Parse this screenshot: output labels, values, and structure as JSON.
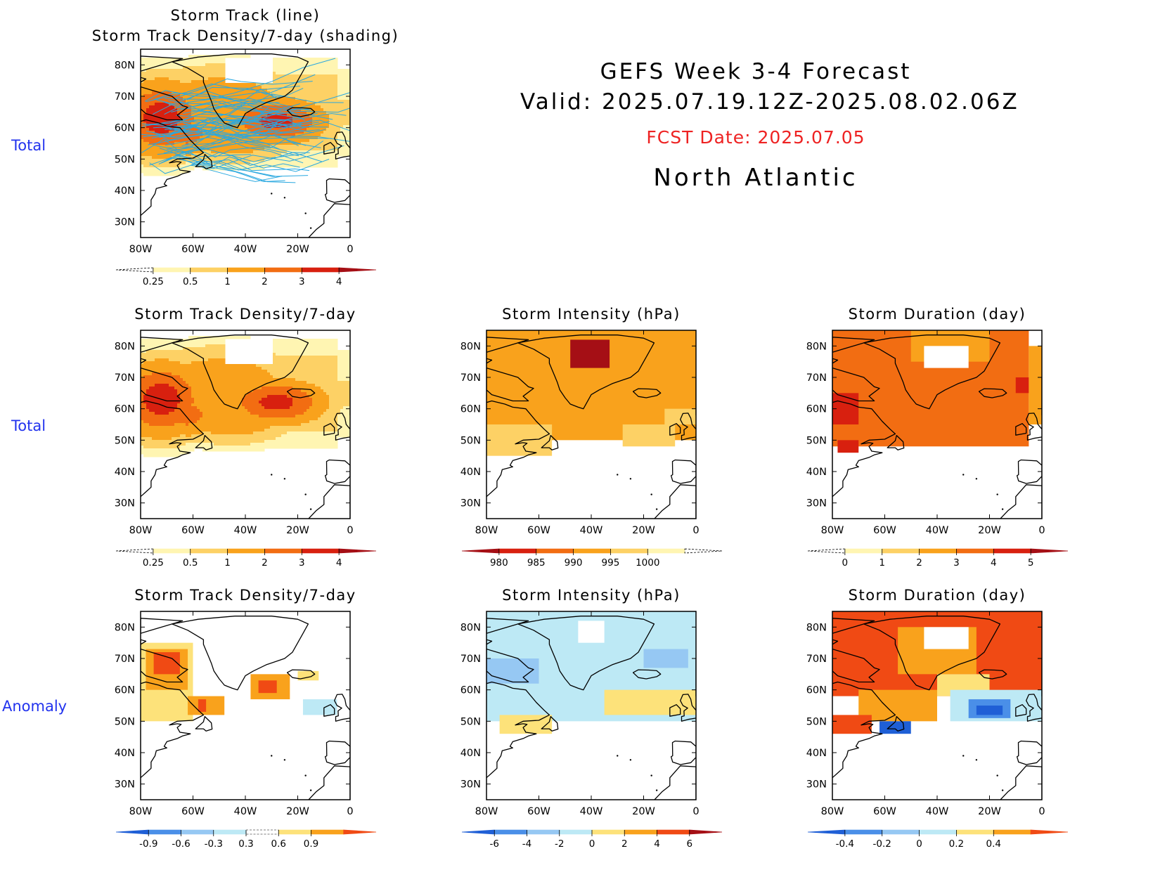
{
  "header": {
    "title": "GEFS Week 3-4 Forecast",
    "valid": "Valid: 2025.07.19.12Z-2025.08.02.06Z",
    "fcst_date": "FCST Date: 2025.07.05",
    "region": "North Atlantic"
  },
  "row_labels": [
    "Total",
    "Total",
    "Anomaly"
  ],
  "axes": {
    "lat_ticks": [
      "80N",
      "70N",
      "60N",
      "50N",
      "40N",
      "30N"
    ],
    "lon_ticks": [
      "80W",
      "60W",
      "40W",
      "20W",
      "0"
    ]
  },
  "colors": {
    "row_label": "#2233ee",
    "fcst_date": "#ee2222",
    "storm_track_line": "#29a8e0",
    "coastline": "#000000"
  },
  "chart_data": [
    {
      "id": "p0",
      "type": "heatmap",
      "title_lines": [
        "Storm Track (line)",
        "Storm Track Density/7-day (shading)"
      ],
      "xlim": [
        -80,
        0
      ],
      "ylim": [
        25,
        85
      ],
      "levels": [
        "0.25",
        "0.5",
        "1",
        "2",
        "3",
        "4"
      ],
      "palette": [
        "#ffffff",
        "#fff5b2",
        "#fdd165",
        "#f9a21c",
        "#f26d12",
        "#d8200f",
        "#a50f15"
      ],
      "style": "smooth",
      "track_lines": true,
      "hotspots": [
        {
          "lon": -72,
          "lat": 63,
          "amp": 3.6,
          "rx": 11,
          "ry": 8
        },
        {
          "lon": -62,
          "lat": 58,
          "amp": 2.4,
          "rx": 9,
          "ry": 5
        },
        {
          "lon": -28,
          "lat": 62,
          "amp": 3.4,
          "rx": 13,
          "ry": 5
        },
        {
          "lon": -45,
          "lat": 58,
          "amp": 1.8,
          "rx": 16,
          "ry": 6
        },
        {
          "lon": -50,
          "lat": 68,
          "amp": 1.6,
          "rx": 22,
          "ry": 8
        }
      ]
    },
    {
      "id": "p1",
      "type": "heatmap",
      "title_lines": [
        "Storm Track Density/7-day"
      ],
      "xlim": [
        -80,
        0
      ],
      "ylim": [
        25,
        85
      ],
      "levels": [
        "0.25",
        "0.5",
        "1",
        "2",
        "3",
        "4"
      ],
      "palette": [
        "#ffffff",
        "#fff5b2",
        "#fdd165",
        "#f9a21c",
        "#f26d12",
        "#d8200f",
        "#a50f15"
      ],
      "style": "smooth",
      "track_lines": false,
      "hotspots": [
        {
          "lon": -72,
          "lat": 63,
          "amp": 3.6,
          "rx": 11,
          "ry": 8
        },
        {
          "lon": -62,
          "lat": 58,
          "amp": 2.4,
          "rx": 9,
          "ry": 5
        },
        {
          "lon": -28,
          "lat": 62,
          "amp": 3.4,
          "rx": 13,
          "ry": 5
        },
        {
          "lon": -45,
          "lat": 58,
          "amp": 1.8,
          "rx": 16,
          "ry": 6
        },
        {
          "lon": -50,
          "lat": 68,
          "amp": 1.6,
          "rx": 22,
          "ry": 8
        }
      ]
    },
    {
      "id": "p2",
      "type": "heatmap",
      "title_lines": [
        "Storm Intensity (hPa)"
      ],
      "xlim": [
        -80,
        0
      ],
      "ylim": [
        25,
        85
      ],
      "levels": [
        "980",
        "985",
        "990",
        "995",
        "1000"
      ],
      "palette": [
        "#a50f15",
        "#d8200f",
        "#f26d12",
        "#f9a21c",
        "#fdd165",
        "#fff5b2",
        "#ffffff"
      ],
      "style": "blocks",
      "blocks": [
        {
          "lon0": -80,
          "lon1": 0,
          "lat0": 50,
          "lat1": 85,
          "lvl": 3
        },
        {
          "lon0": -80,
          "lon1": -55,
          "lat0": 45,
          "lat1": 55,
          "lvl": 4
        },
        {
          "lon0": -48,
          "lon1": -33,
          "lat0": 73,
          "lat1": 82,
          "lvl": 0
        },
        {
          "lon0": -28,
          "lon1": -8,
          "lat0": 48,
          "lat1": 55,
          "lvl": 4
        },
        {
          "lon0": -12,
          "lon1": 0,
          "lat0": 55,
          "lat1": 60,
          "lvl": 4
        }
      ]
    },
    {
      "id": "p3",
      "type": "heatmap",
      "title_lines": [
        "Storm Duration (day)"
      ],
      "xlim": [
        -80,
        0
      ],
      "ylim": [
        25,
        85
      ],
      "levels": [
        "0",
        "1",
        "2",
        "3",
        "4",
        "5"
      ],
      "palette": [
        "#ffffff",
        "#fff5b2",
        "#fdd165",
        "#f9a21c",
        "#f26d12",
        "#d8200f",
        "#a50f15"
      ],
      "style": "blocks",
      "blocks": [
        {
          "lon0": -80,
          "lon1": -5,
          "lat0": 48,
          "lat1": 85,
          "lvl": 4
        },
        {
          "lon0": -50,
          "lon1": -20,
          "lat0": 75,
          "lat1": 85,
          "lvl": 3
        },
        {
          "lon0": -45,
          "lon1": -28,
          "lat0": 73,
          "lat1": 80,
          "lvl": 0
        },
        {
          "lon0": -80,
          "lon1": -70,
          "lat0": 55,
          "lat1": 65,
          "lvl": 5
        },
        {
          "lon0": -78,
          "lon1": -70,
          "lat0": 46,
          "lat1": 50,
          "lvl": 5
        },
        {
          "lon0": -10,
          "lon1": -5,
          "lat0": 65,
          "lat1": 70,
          "lvl": 5
        },
        {
          "lon0": -5,
          "lon1": 0,
          "lat0": 55,
          "lat1": 80,
          "lvl": 3
        }
      ]
    },
    {
      "id": "p4",
      "type": "heatmap",
      "title_lines": [
        "Storm Track Density/7-day"
      ],
      "xlim": [
        -80,
        0
      ],
      "ylim": [
        25,
        85
      ],
      "levels": [
        "-0.9",
        "-0.6",
        "-0.3",
        "0.3",
        "0.6",
        "0.9"
      ],
      "palette": [
        "#1f5fd6",
        "#4a8fe8",
        "#96c8f3",
        "#bde9f5",
        "#ffffff",
        "#fde27a",
        "#f9a21c",
        "#f04a14"
      ],
      "style": "blocks",
      "blocks": [
        {
          "lon0": -80,
          "lon1": -60,
          "lat0": 50,
          "lat1": 75,
          "lvl": 5
        },
        {
          "lon0": -78,
          "lon1": -62,
          "lat0": 60,
          "lat1": 73,
          "lvl": 6
        },
        {
          "lon0": -75,
          "lon1": -65,
          "lat0": 65,
          "lat1": 72,
          "lvl": 7
        },
        {
          "lon0": -62,
          "lon1": -48,
          "lat0": 52,
          "lat1": 58,
          "lvl": 6
        },
        {
          "lon0": -58,
          "lon1": -55,
          "lat0": 53,
          "lat1": 57,
          "lvl": 7
        },
        {
          "lon0": -38,
          "lon1": -23,
          "lat0": 57,
          "lat1": 65,
          "lvl": 6
        },
        {
          "lon0": -35,
          "lon1": -28,
          "lat0": 59,
          "lat1": 63,
          "lvl": 7
        },
        {
          "lon0": -20,
          "lon1": -12,
          "lat0": 63,
          "lat1": 66,
          "lvl": 5
        },
        {
          "lon0": -18,
          "lon1": -5,
          "lat0": 52,
          "lat1": 57,
          "lvl": 3
        }
      ]
    },
    {
      "id": "p5",
      "type": "heatmap",
      "title_lines": [
        "Storm Intensity (hPa)"
      ],
      "xlim": [
        -80,
        0
      ],
      "ylim": [
        25,
        85
      ],
      "levels": [
        "-6",
        "-4",
        "-2",
        "0",
        "2",
        "4",
        "6"
      ],
      "palette": [
        "#1f5fd6",
        "#4a8fe8",
        "#96c8f3",
        "#bde9f5",
        "#fde27a",
        "#f9a21c",
        "#f04a14",
        "#a50f15"
      ],
      "style": "blocks",
      "blocks": [
        {
          "lon0": -80,
          "lon1": 0,
          "lat0": 50,
          "lat1": 85,
          "lvl": 3
        },
        {
          "lon0": -80,
          "lon1": -60,
          "lat0": 62,
          "lat1": 70,
          "lvl": 2
        },
        {
          "lon0": -20,
          "lon1": -3,
          "lat0": 67,
          "lat1": 73,
          "lvl": 2
        },
        {
          "lon0": -45,
          "lon1": -35,
          "lat0": 75,
          "lat1": 82,
          "lvl": -1
        },
        {
          "lon0": -35,
          "lon1": 0,
          "lat0": 52,
          "lat1": 60,
          "lvl": 4
        },
        {
          "lon0": -75,
          "lon1": -55,
          "lat0": 46,
          "lat1": 52,
          "lvl": 4
        }
      ]
    },
    {
      "id": "p6",
      "type": "heatmap",
      "title_lines": [
        "Storm Duration (day)"
      ],
      "xlim": [
        -80,
        0
      ],
      "ylim": [
        25,
        85
      ],
      "levels": [
        "-0.4",
        "-0.2",
        "0",
        "0.2",
        "0.4"
      ],
      "palette": [
        "#1f5fd6",
        "#4a8fe8",
        "#96c8f3",
        "#bde9f5",
        "#fde27a",
        "#f9a21c",
        "#f04a14"
      ],
      "style": "blocks",
      "blocks": [
        {
          "lon0": -80,
          "lon1": 0,
          "lat0": 58,
          "lat1": 85,
          "lvl": 6
        },
        {
          "lon0": -55,
          "lon1": -25,
          "lat0": 65,
          "lat1": 80,
          "lvl": 5
        },
        {
          "lon0": -45,
          "lon1": -28,
          "lat0": 73,
          "lat1": 80,
          "lvl": -1
        },
        {
          "lon0": -40,
          "lon1": -20,
          "lat0": 58,
          "lat1": 65,
          "lvl": 4
        },
        {
          "lon0": -70,
          "lon1": -40,
          "lat0": 50,
          "lat1": 60,
          "lvl": 5
        },
        {
          "lon0": -35,
          "lon1": 0,
          "lat0": 50,
          "lat1": 60,
          "lvl": 3
        },
        {
          "lon0": -28,
          "lon1": -12,
          "lat0": 51,
          "lat1": 57,
          "lvl": 1
        },
        {
          "lon0": -25,
          "lon1": -15,
          "lat0": 52,
          "lat1": 55,
          "lvl": 0
        },
        {
          "lon0": -80,
          "lon1": -65,
          "lat0": 46,
          "lat1": 52,
          "lvl": 6
        },
        {
          "lon0": -62,
          "lon1": -50,
          "lat0": 46,
          "lat1": 50,
          "lvl": 0
        }
      ]
    }
  ]
}
